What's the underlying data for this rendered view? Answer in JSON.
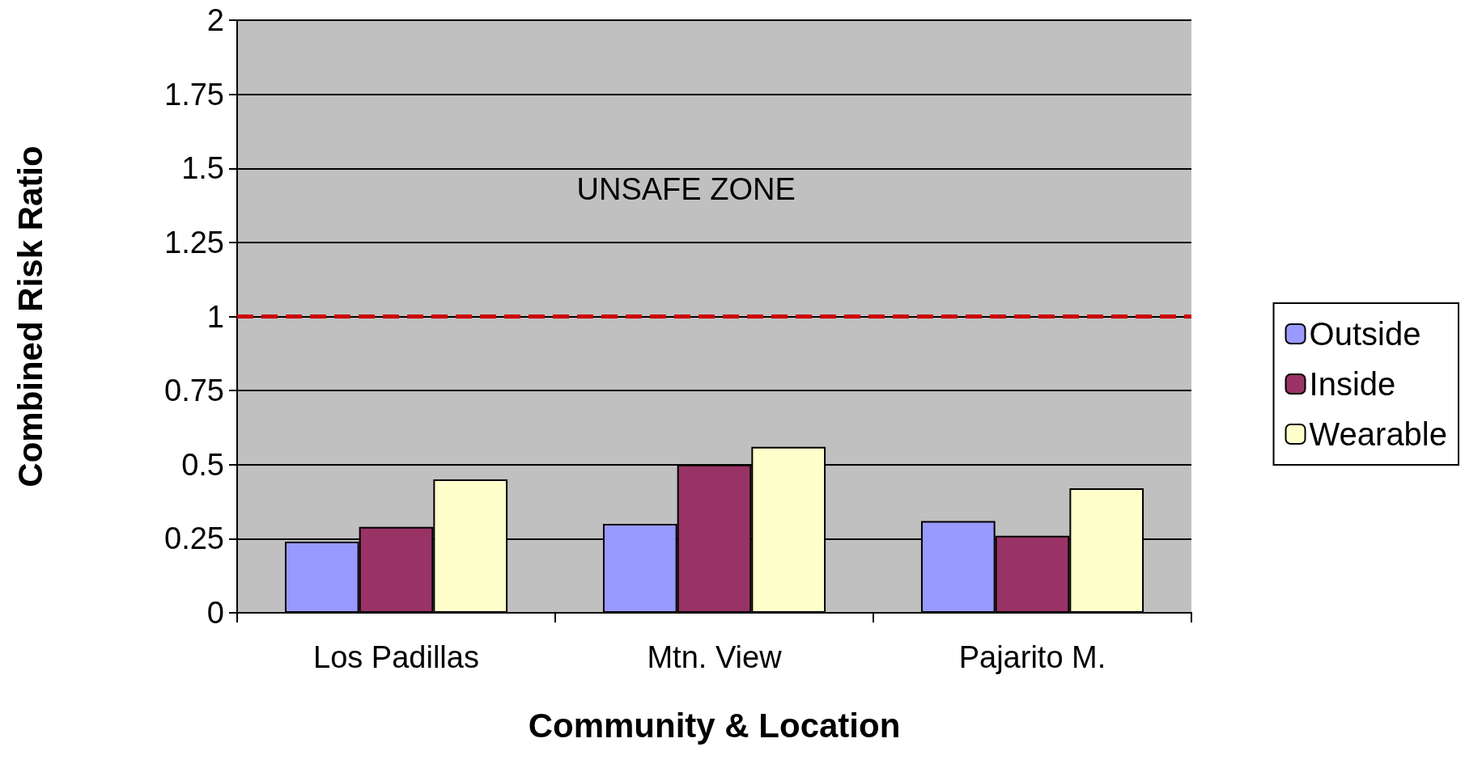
{
  "chart_data": {
    "type": "bar",
    "xlabel": "Community & Location",
    "ylabel": "Combined Risk Ratio",
    "categories": [
      "Los Padillas",
      "Mtn. View",
      "Pajarito M."
    ],
    "series": [
      {
        "name": "Outside",
        "color": "#9999ff",
        "values": [
          0.24,
          0.3,
          0.31
        ]
      },
      {
        "name": "Inside",
        "color": "#993366",
        "values": [
          0.29,
          0.5,
          0.26
        ]
      },
      {
        "name": "Wearable",
        "color": "#ffffcc",
        "values": [
          0.45,
          0.56,
          0.42
        ]
      }
    ],
    "ylim": [
      0,
      2
    ],
    "yticks": [
      0,
      0.25,
      0.5,
      0.75,
      1,
      1.25,
      1.5,
      1.75,
      2
    ],
    "ref_lines": [
      {
        "axis": "y",
        "value": 1,
        "color": "#cc0000",
        "line_style": "dashed"
      }
    ],
    "annotations": [
      "UNSAFE ZONE"
    ],
    "grid": "y",
    "legend": "right"
  }
}
